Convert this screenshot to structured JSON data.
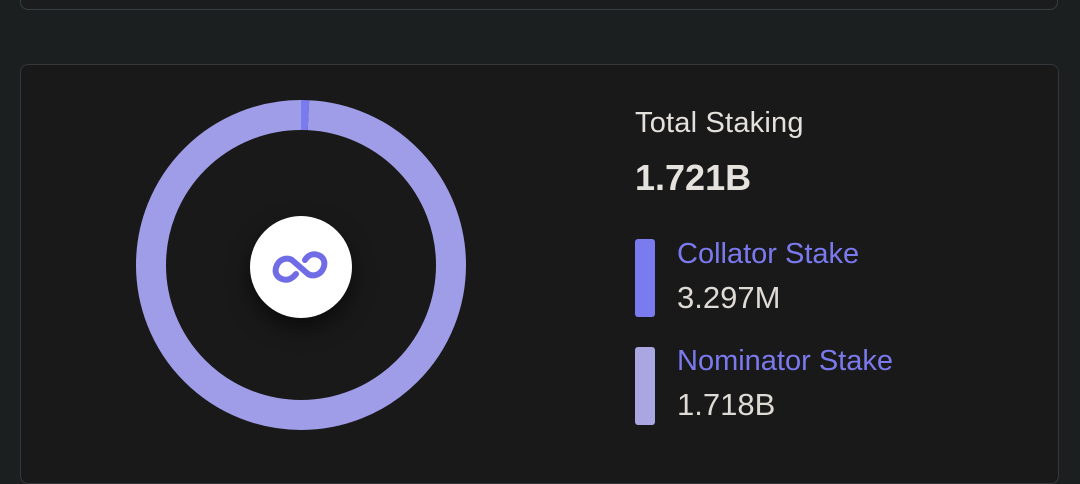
{
  "chart_data": {
    "type": "pie",
    "variant": "donut",
    "title": "Total Staking",
    "total_label": "1.721B",
    "total_value": 1721000000,
    "series": [
      {
        "name": "Collator Stake",
        "value": 3297000,
        "value_label": "3.297M",
        "color": "#7b7bf0"
      },
      {
        "name": "Nominator Stake",
        "value": 1718000000,
        "value_label": "1.718B",
        "color": "#a09de8"
      }
    ]
  },
  "colors": {
    "background": "#1c1f20",
    "card": "#191919",
    "logo_accent": "#6f6ce6"
  },
  "icons": {
    "center": "link-logo-icon"
  }
}
